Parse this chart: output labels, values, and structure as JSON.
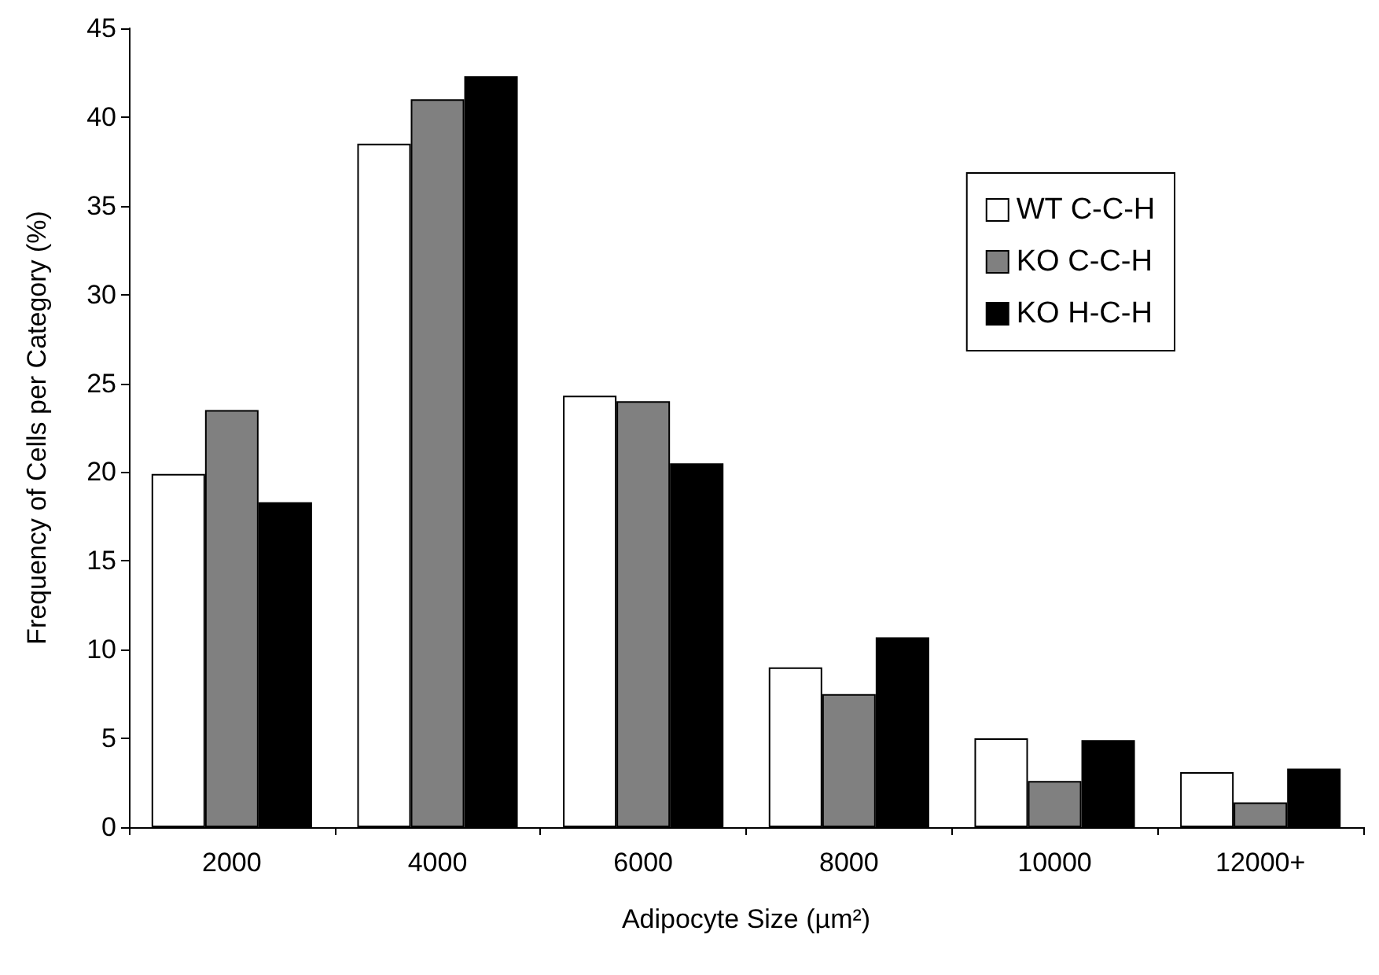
{
  "chart_data": {
    "type": "bar",
    "xlabel": "Adipocyte Size (µm²)",
    "ylabel": "Frequency of Cells per Category (%)",
    "categories": [
      "2000",
      "4000",
      "6000",
      "8000",
      "10000",
      "12000+"
    ],
    "series": [
      {
        "name": "WT C-C-H",
        "color": "#ffffff",
        "values": [
          19.9,
          38.5,
          24.3,
          9.0,
          5.0,
          3.1
        ]
      },
      {
        "name": "KO C-C-H",
        "color": "#808080",
        "values": [
          23.5,
          41.0,
          24.0,
          7.5,
          2.6,
          1.4
        ]
      },
      {
        "name": "KO H-C-H",
        "color": "#000000",
        "values": [
          18.3,
          42.3,
          20.5,
          10.7,
          4.9,
          3.3
        ]
      }
    ],
    "ylim": [
      0,
      45
    ],
    "yticks": [
      0,
      5,
      10,
      15,
      20,
      25,
      30,
      35,
      40,
      45
    ],
    "grid": false,
    "legend": "top right"
  }
}
